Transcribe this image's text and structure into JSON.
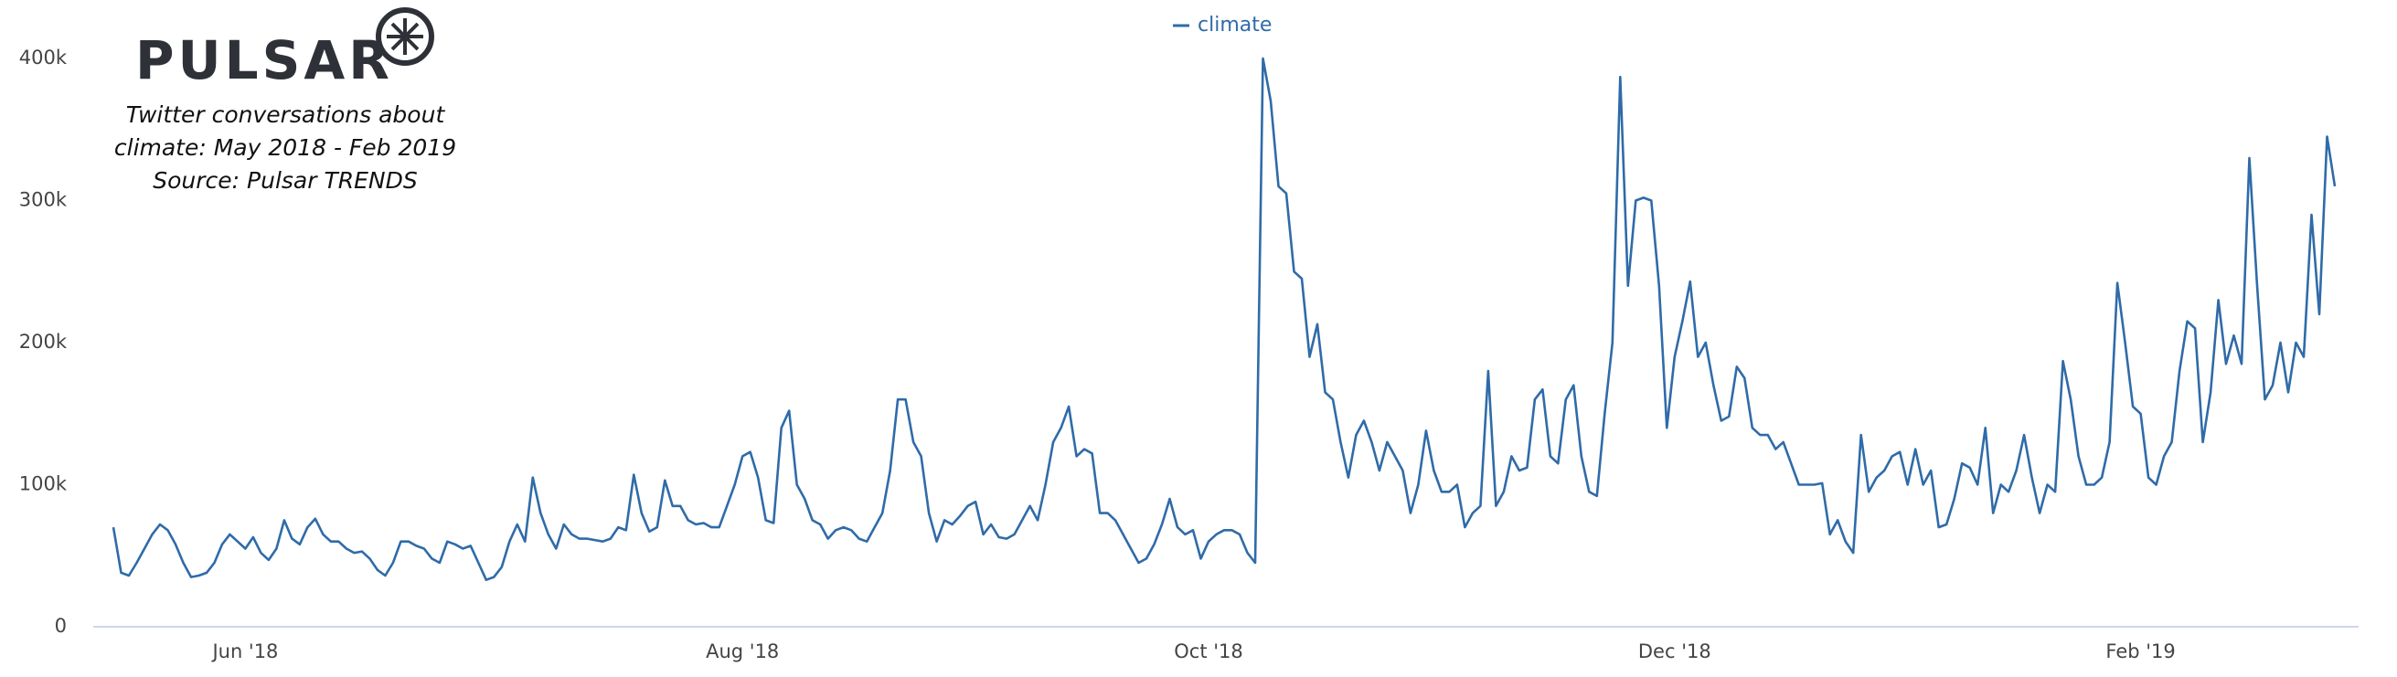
{
  "chart_data": {
    "type": "line",
    "logo": "PULSAR",
    "title_lines": [
      "Twitter conversations about",
      "climate: May 2018 - Feb 2019",
      "Source: Pulsar TRENDS"
    ],
    "categories": [
      null,
      null,
      null,
      null,
      null,
      null,
      null,
      null,
      null,
      null,
      null,
      null,
      null,
      null,
      null,
      null,
      null,
      "Jun '18",
      null,
      null,
      null,
      null,
      null,
      null,
      null,
      null,
      null,
      null,
      null,
      null,
      null,
      null,
      null,
      null,
      null,
      null,
      null,
      null,
      null,
      null,
      null,
      null,
      null,
      null,
      null,
      null,
      null,
      null,
      null,
      null,
      null,
      null,
      null,
      null,
      null,
      null,
      null,
      null,
      null,
      null,
      null,
      null,
      null,
      null,
      null,
      null,
      null,
      null,
      null,
      null,
      null,
      null,
      null,
      null,
      null,
      null,
      null,
      null,
      null,
      null,
      null,
      "Aug '18",
      null,
      null,
      null,
      null,
      null,
      null,
      null,
      null,
      null,
      null,
      null,
      null,
      null,
      null,
      null,
      null,
      null,
      null,
      null,
      null,
      null,
      null,
      null,
      null,
      null,
      null,
      null,
      null,
      null,
      null,
      null,
      null,
      null,
      null,
      null,
      null,
      null,
      null,
      null,
      null,
      null,
      null,
      null,
      null,
      null,
      null,
      null,
      null,
      null,
      null,
      null,
      null,
      null,
      null,
      null,
      null,
      null,
      null,
      null,
      "Oct '18",
      null,
      null,
      null,
      null,
      null,
      null,
      null,
      null,
      null,
      null,
      null,
      null,
      null,
      null,
      null,
      null,
      null,
      null,
      null,
      null,
      null,
      null,
      null,
      null,
      null,
      null,
      null,
      null,
      null,
      null,
      null,
      null,
      null,
      null,
      null,
      null,
      null,
      null,
      null,
      null,
      null,
      null,
      null,
      null,
      null,
      null,
      null,
      null,
      null,
      null,
      null,
      null,
      null,
      null,
      null,
      null,
      null,
      null,
      null,
      "Dec '18",
      null,
      null,
      null,
      null,
      null,
      null,
      null,
      null,
      null,
      null,
      null,
      null,
      null,
      null,
      null,
      null,
      null,
      null,
      null,
      null,
      null,
      null,
      null,
      null,
      null,
      null,
      null,
      null,
      null,
      null,
      null,
      null,
      null,
      null,
      null,
      null,
      null,
      null,
      null,
      null,
      null,
      null,
      null,
      null,
      null,
      null,
      null,
      null,
      null,
      null,
      null,
      null,
      null,
      null,
      null,
      null,
      null,
      null,
      null,
      "Feb '19",
      null,
      null,
      null,
      null,
      null,
      null,
      null,
      null,
      null,
      null,
      null,
      null,
      null,
      null,
      null,
      null,
      null,
      null,
      null,
      null,
      null,
      null,
      null,
      null,
      null
    ],
    "series": [
      {
        "name": "climate",
        "color": "#2f6ba8",
        "values": [
          70,
          38,
          36,
          45,
          55,
          65,
          72,
          68,
          58,
          45,
          35,
          36,
          38,
          45,
          58,
          65,
          60,
          55,
          63,
          52,
          47,
          55,
          75,
          62,
          58,
          70,
          76,
          65,
          60,
          60,
          55,
          52,
          53,
          48,
          40,
          36,
          45,
          60,
          60,
          57,
          55,
          48,
          45,
          60,
          58,
          55,
          57,
          45,
          33,
          35,
          42,
          60,
          72,
          60,
          105,
          80,
          65,
          55,
          72,
          65,
          62,
          62,
          61,
          60,
          62,
          70,
          68,
          107,
          80,
          67,
          70,
          103,
          85,
          85,
          75,
          72,
          73,
          70,
          70,
          85,
          100,
          120,
          123,
          105,
          75,
          73,
          140,
          152,
          100,
          90,
          75,
          72,
          62,
          68,
          70,
          68,
          62,
          60,
          70,
          80,
          110,
          160,
          160,
          130,
          120,
          80,
          60,
          75,
          72,
          78,
          85,
          88,
          65,
          72,
          63,
          62,
          65,
          75,
          85,
          75,
          100,
          130,
          140,
          155,
          120,
          125,
          122,
          80,
          80,
          75,
          65,
          55,
          45,
          48,
          58,
          72,
          90,
          70,
          65,
          68,
          48,
          60,
          65,
          68,
          68,
          65,
          52,
          45,
          400,
          370,
          310,
          305,
          250,
          245,
          190,
          213,
          165,
          160,
          130,
          105,
          135,
          145,
          130,
          110,
          130,
          120,
          110,
          80,
          100,
          138,
          110,
          95,
          95,
          100,
          70,
          80,
          85,
          180,
          85,
          95,
          120,
          110,
          112,
          160,
          167,
          120,
          115,
          160,
          170,
          120,
          95,
          92,
          150,
          200,
          387,
          240,
          300,
          302,
          300,
          240,
          140,
          190,
          215,
          243,
          190,
          200,
          170,
          145,
          148,
          183,
          175,
          140,
          135,
          135,
          125,
          130,
          115,
          100,
          100,
          100,
          101,
          65,
          75,
          60,
          52,
          135,
          95,
          105,
          110,
          120,
          123,
          100,
          125,
          100,
          110,
          70,
          72,
          90,
          115,
          112,
          100,
          140,
          80,
          100,
          95,
          110,
          135,
          105,
          80,
          100,
          95,
          187,
          160,
          120,
          100,
          100,
          105,
          130,
          242,
          200,
          155,
          150,
          105,
          100,
          120,
          130,
          180,
          215,
          210,
          130,
          165,
          230,
          185,
          205,
          185,
          330,
          240,
          160,
          170,
          200,
          165,
          200,
          190,
          290,
          220,
          345,
          310
        ]
      }
    ],
    "ylim": [
      0,
      400
    ],
    "yticks": [
      0,
      {
        "value": 100,
        "label": "100k"
      },
      {
        "value": 200,
        "label": "200k"
      },
      {
        "value": 300,
        "label": "300k"
      },
      {
        "value": 400,
        "label": "400k"
      }
    ],
    "grid": false,
    "legend": "top"
  }
}
